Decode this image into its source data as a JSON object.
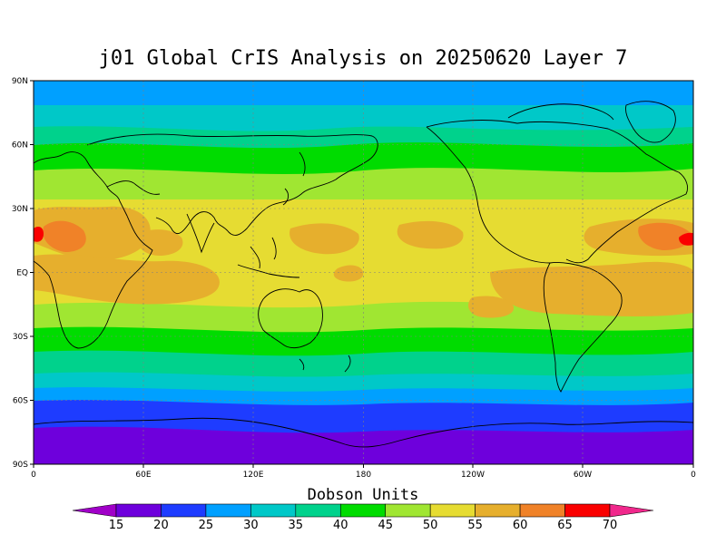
{
  "title": "j01 Global CrIS Analysis on 20250620 Layer 7",
  "lat_ticks": [
    "90N",
    "60N",
    "30N",
    "EQ",
    "30S",
    "60S",
    "90S"
  ],
  "lon_ticks": [
    "0",
    "60E",
    "120E",
    "180",
    "120W",
    "60W",
    "0"
  ],
  "colorbar": {
    "title": "Dobson Units",
    "levels": [
      "15",
      "20",
      "25",
      "30",
      "35",
      "40",
      "45",
      "50",
      "55",
      "60",
      "65",
      "70"
    ],
    "colors": [
      "#a000c8",
      "#6e00dc",
      "#1e3cff",
      "#00a0ff",
      "#00c8c8",
      "#00d28c",
      "#00dc00",
      "#a0e632",
      "#e6dc32",
      "#e6af2d",
      "#f08228",
      "#fa0000",
      "#f0288c"
    ]
  },
  "chart_data": {
    "type": "heatmap",
    "title": "j01 Global CrIS Analysis on 20250620 Layer 7",
    "xlabel": "",
    "ylabel": "",
    "x_range": [
      "0",
      "0"
    ],
    "y_range": [
      "90S",
      "90N"
    ],
    "units": "Dobson Units",
    "zonal_bands_DU": [
      {
        "lat": "90N-75N",
        "value": 32
      },
      {
        "lat": "75N-65N",
        "value": 37
      },
      {
        "lat": "65N-50N",
        "value": 42
      },
      {
        "lat": "50N-35N",
        "value": 47
      },
      {
        "lat": "35N-15N",
        "value": 55
      },
      {
        "lat": "15N-10S",
        "value": 57
      },
      {
        "lat": "10S-25S",
        "value": 52
      },
      {
        "lat": "25S-35S",
        "value": 47
      },
      {
        "lat": "35S-45S",
        "value": 42
      },
      {
        "lat": "45S-55S",
        "value": 37
      },
      {
        "lat": "55S-65S",
        "value": 30
      },
      {
        "lat": "65S-75S",
        "value": 22
      },
      {
        "lat": "75S-90S",
        "value": 17
      }
    ],
    "maxima": [
      {
        "region": "West Africa",
        "value": 65
      },
      {
        "region": "Central Africa / South Atlantic",
        "value": 62
      }
    ],
    "legend_placement": "bottom"
  }
}
